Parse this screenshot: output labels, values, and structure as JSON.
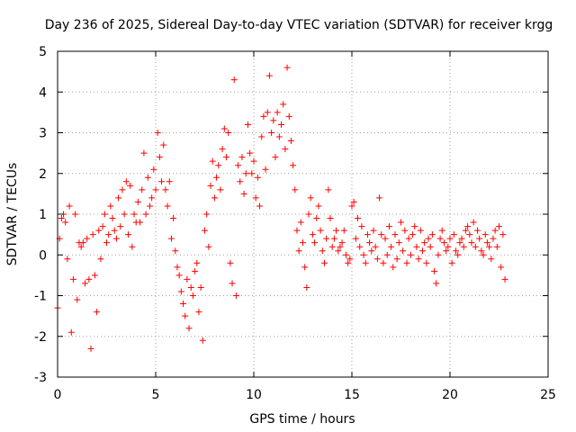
{
  "chart_data": {
    "type": "scatter",
    "title": "Day 236 of 2025, Sidereal Day-to-day VTEC variation (SDTVAR) for receiver krgg",
    "xlabel": "GPS time / hours",
    "ylabel": "SDTVAR / TECUs",
    "xlim": [
      0,
      25
    ],
    "ylim": [
      -3,
      5
    ],
    "xticks": [
      "0",
      "5",
      "10",
      "15",
      "20",
      "25"
    ],
    "yticks": [
      "-3",
      "-2",
      "-1",
      "0",
      "1",
      "2",
      "3",
      "4",
      "5"
    ],
    "grid": true,
    "marker": "+",
    "color": "#ff0000",
    "series": [
      {
        "name": "SDTVAR",
        "x": [
          0.0,
          0.1,
          0.2,
          0.3,
          0.4,
          0.5,
          0.6,
          0.7,
          0.8,
          0.9,
          1.0,
          1.1,
          1.2,
          1.3,
          1.4,
          1.5,
          1.6,
          1.7,
          1.8,
          1.9,
          2.0,
          2.1,
          2.2,
          2.3,
          2.4,
          2.5,
          2.6,
          2.7,
          2.8,
          2.9,
          3.0,
          3.1,
          3.2,
          3.3,
          3.4,
          3.5,
          3.6,
          3.7,
          3.8,
          3.9,
          4.0,
          4.1,
          4.2,
          4.3,
          4.4,
          4.5,
          4.6,
          4.7,
          4.8,
          4.9,
          5.0,
          5.1,
          5.2,
          5.3,
          5.4,
          5.5,
          5.6,
          5.7,
          5.8,
          5.9,
          6.0,
          6.1,
          6.2,
          6.3,
          6.4,
          6.5,
          6.6,
          6.7,
          6.8,
          6.9,
          7.0,
          7.1,
          7.2,
          7.3,
          7.4,
          7.5,
          7.6,
          7.7,
          7.8,
          7.9,
          8.0,
          8.1,
          8.2,
          8.3,
          8.4,
          8.5,
          8.6,
          8.7,
          8.8,
          8.9,
          9.0,
          9.1,
          9.2,
          9.3,
          9.4,
          9.5,
          9.6,
          9.7,
          9.8,
          9.9,
          10.0,
          10.1,
          10.2,
          10.3,
          10.4,
          10.5,
          10.6,
          10.7,
          10.8,
          10.9,
          11.0,
          11.1,
          11.2,
          11.3,
          11.4,
          11.5,
          11.6,
          11.7,
          11.8,
          11.9,
          12.0,
          12.1,
          12.2,
          12.3,
          12.4,
          12.5,
          12.6,
          12.7,
          12.8,
          12.9,
          13.0,
          13.1,
          13.2,
          13.3,
          13.4,
          13.5,
          13.6,
          13.7,
          13.8,
          13.9,
          14.0,
          14.1,
          14.2,
          14.3,
          14.4,
          14.5,
          14.6,
          14.7,
          14.8,
          14.9,
          15.0,
          15.1,
          15.2,
          15.3,
          15.4,
          15.5,
          15.6,
          15.7,
          15.8,
          15.9,
          16.0,
          16.1,
          16.2,
          16.3,
          16.4,
          16.5,
          16.6,
          16.7,
          16.8,
          16.9,
          17.0,
          17.1,
          17.2,
          17.3,
          17.4,
          17.5,
          17.6,
          17.7,
          17.8,
          17.9,
          18.0,
          18.1,
          18.2,
          18.3,
          18.4,
          18.5,
          18.6,
          18.7,
          18.8,
          18.9,
          19.0,
          19.1,
          19.2,
          19.3,
          19.4,
          19.5,
          19.6,
          19.7,
          19.8,
          19.9,
          20.0,
          20.1,
          20.2,
          20.3,
          20.4,
          20.5,
          20.6,
          20.7,
          20.8,
          20.9,
          21.0,
          21.1,
          21.2,
          21.3,
          21.4,
          21.5,
          21.6,
          21.7,
          21.8,
          21.9,
          22.0,
          22.1,
          22.2,
          22.3,
          22.4,
          22.5,
          22.6,
          22.7,
          22.8
        ],
        "y": [
          -1.3,
          0.4,
          0.9,
          1.0,
          0.8,
          -0.1,
          1.2,
          -1.9,
          -0.6,
          1.0,
          -1.1,
          0.3,
          0.2,
          0.3,
          -0.7,
          0.4,
          -0.6,
          -2.3,
          0.5,
          -0.5,
          -1.4,
          0.6,
          -0.1,
          0.7,
          1.0,
          0.3,
          0.5,
          1.2,
          0.9,
          0.6,
          0.4,
          1.4,
          0.7,
          1.6,
          1.0,
          1.8,
          0.5,
          1.7,
          0.2,
          1.0,
          0.8,
          1.3,
          0.8,
          1.6,
          2.5,
          1.0,
          1.9,
          1.2,
          1.4,
          2.1,
          1.6,
          3.0,
          2.4,
          1.8,
          2.7,
          1.6,
          1.2,
          1.8,
          0.4,
          0.9,
          0.1,
          -0.3,
          -0.5,
          -0.9,
          -1.2,
          -1.5,
          -0.6,
          -1.8,
          -0.8,
          -1.0,
          -0.4,
          -0.2,
          -1.4,
          -0.8,
          -2.1,
          0.6,
          1.0,
          0.2,
          1.7,
          2.3,
          1.4,
          1.9,
          2.2,
          1.6,
          2.6,
          3.1,
          2.4,
          3.0,
          -0.2,
          -0.7,
          4.3,
          -1.0,
          2.2,
          1.8,
          2.4,
          1.5,
          2.0,
          3.2,
          2.5,
          2.0,
          2.3,
          1.4,
          1.9,
          1.2,
          2.9,
          3.4,
          2.1,
          3.5,
          4.4,
          3.0,
          3.3,
          2.4,
          3.5,
          2.9,
          3.2,
          3.7,
          2.6,
          4.6,
          3.4,
          2.8,
          2.2,
          1.6,
          0.6,
          0.1,
          0.8,
          0.3,
          -0.3,
          -0.8,
          1.0,
          1.4,
          0.5,
          0.3,
          0.9,
          1.2,
          0.6,
          0.1,
          -0.2,
          0.4,
          1.6,
          0.9,
          0.2,
          0.4,
          0.6,
          0.1,
          0.2,
          0.3,
          0.6,
          0.0,
          -0.2,
          -0.1,
          1.2,
          1.3,
          0.4,
          0.9,
          0.2,
          0.7,
          0.0,
          -0.2,
          0.5,
          0.3,
          0.1,
          0.6,
          0.2,
          -0.1,
          1.4,
          0.5,
          -0.2,
          0.4,
          0.0,
          0.7,
          0.2,
          -0.3,
          0.5,
          -0.1,
          0.3,
          0.8,
          0.1,
          0.6,
          -0.2,
          0.4,
          0.0,
          0.5,
          0.7,
          0.2,
          -0.1,
          0.6,
          0.1,
          0.3,
          -0.2,
          0.4,
          0.2,
          0.5,
          -0.4,
          -0.7,
          0.0,
          0.4,
          0.6,
          0.3,
          0.1,
          0.2,
          0.4,
          -0.2,
          0.5,
          0.1,
          0.0,
          0.3,
          0.4,
          0.2,
          0.6,
          0.7,
          0.5,
          0.3,
          0.8,
          0.2,
          0.6,
          0.4,
          0.1,
          0.0,
          0.5,
          0.3,
          0.2,
          -0.1,
          0.4,
          0.6,
          0.2,
          0.7,
          -0.3,
          0.5,
          -0.6
        ]
      }
    ]
  }
}
